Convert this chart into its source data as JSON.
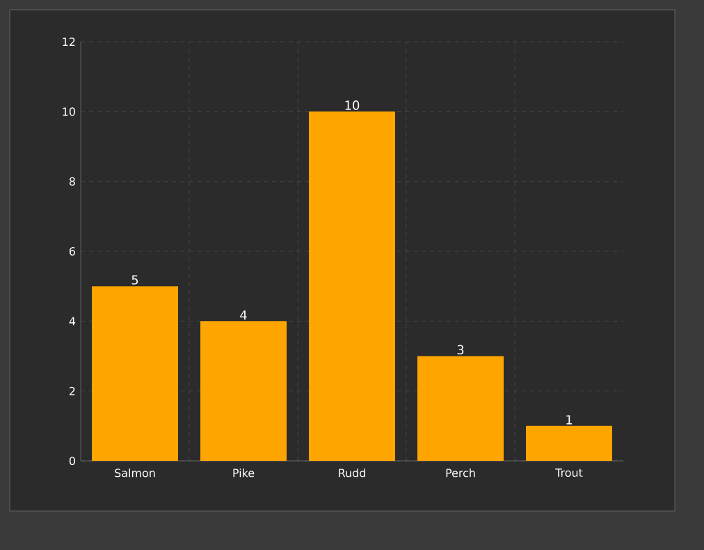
{
  "chart_data": {
    "type": "bar",
    "categories": [
      "Salmon",
      "Pike",
      "Rudd",
      "Perch",
      "Trout"
    ],
    "values": [
      5,
      4,
      10,
      3,
      1
    ],
    "color": "#ffa500",
    "ylim": [
      0,
      12
    ],
    "yticks": [
      0,
      2,
      4,
      6,
      8,
      10,
      12
    ],
    "grid": true,
    "data_labels": true
  }
}
